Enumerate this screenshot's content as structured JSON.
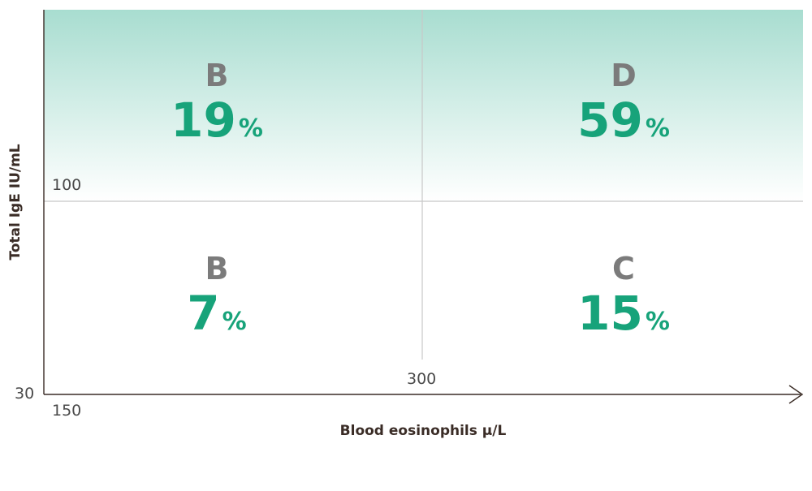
{
  "chart_data": {
    "type": "quadrant",
    "xlabel": "Blood eosinophils µ/L",
    "ylabel": "Total IgE IU/mL",
    "x_ticks": [
      "150",
      "300"
    ],
    "y_ticks": [
      "30",
      "100"
    ],
    "x_threshold": 300,
    "y_threshold": 100,
    "quadrants": [
      {
        "id": "top-left",
        "letter": "B",
        "value": 19,
        "unit": "%"
      },
      {
        "id": "top-right",
        "letter": "D",
        "value": 59,
        "unit": "%"
      },
      {
        "id": "bottom-left",
        "letter": "B",
        "value": 7,
        "unit": "%"
      },
      {
        "id": "bottom-right",
        "letter": "C",
        "value": 15,
        "unit": "%"
      }
    ],
    "colors": {
      "value": "#17a37a",
      "letter": "#7b7b7b",
      "shade_top": "#a8ddd0",
      "shade_bottom": "#ffffff",
      "grid": "#c8c8c8",
      "axis": "#3a2c26"
    }
  }
}
